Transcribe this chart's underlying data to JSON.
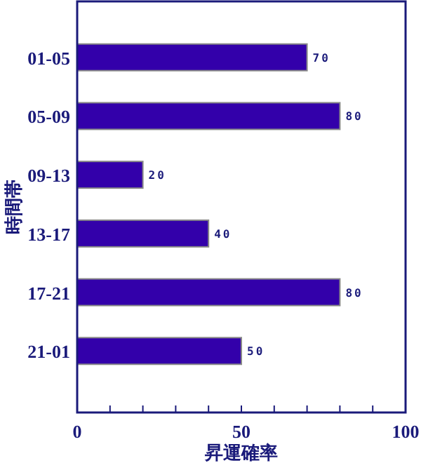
{
  "chart_data": {
    "type": "bar",
    "orientation": "horizontal",
    "xlabel": "昇運確率",
    "ylabel": "時間帯",
    "categories": [
      "01-05",
      "05-09",
      "09-13",
      "13-17",
      "17-21",
      "21-01"
    ],
    "values": [
      70,
      80,
      20,
      40,
      80,
      50
    ],
    "color": "#3300aa",
    "data_labels": true,
    "xlim": [
      0,
      100
    ],
    "xticks": [
      0,
      {
        "value": 10,
        "label": null
      },
      {
        "value": 20,
        "label": null
      },
      {
        "value": 30,
        "label": null
      },
      {
        "value": 40,
        "label": null
      },
      50,
      {
        "value": 60,
        "label": null
      },
      {
        "value": 70,
        "label": null
      },
      {
        "value": 80,
        "label": null
      },
      {
        "value": 90,
        "label": null
      },
      100
    ],
    "grid": false
  }
}
